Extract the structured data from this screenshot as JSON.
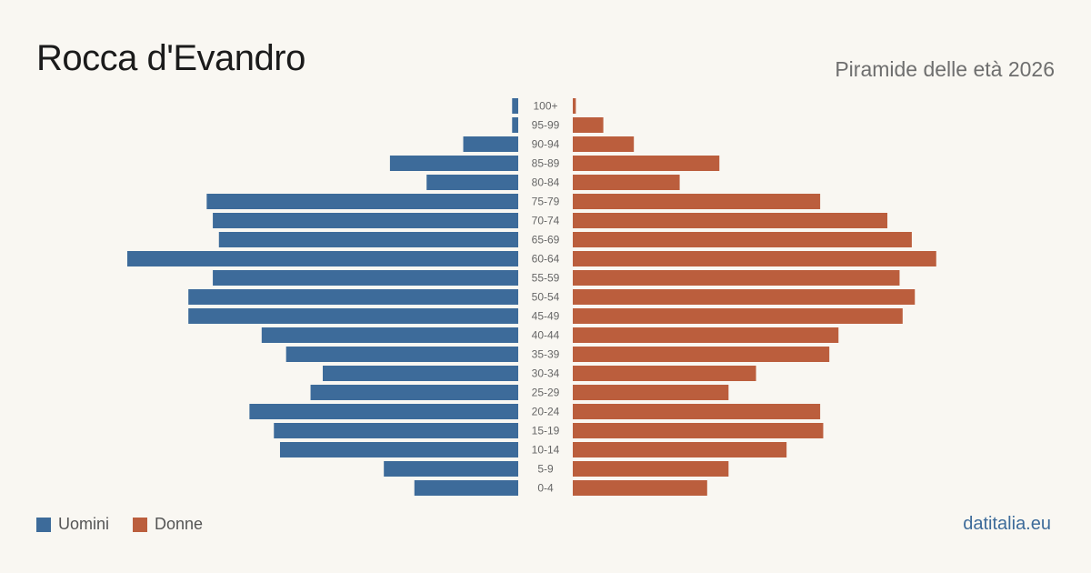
{
  "title": "Rocca d'Evandro",
  "subtitle": "Piramide delle età 2026",
  "brand": "datitalia.eu",
  "legend": {
    "male_label": "Uomini",
    "female_label": "Donne"
  },
  "colors": {
    "male": "#3d6b9a",
    "female": "#bb5e3d",
    "background": "#f9f7f2"
  },
  "chart_data": {
    "type": "bar",
    "orientation": "horizontal-pyramid",
    "categories": [
      "100+",
      "95-99",
      "90-94",
      "85-89",
      "80-84",
      "75-79",
      "70-74",
      "65-69",
      "60-64",
      "55-59",
      "50-54",
      "45-49",
      "40-44",
      "35-39",
      "30-34",
      "25-29",
      "20-24",
      "15-19",
      "10-14",
      "5-9",
      "0-4"
    ],
    "series": [
      {
        "name": "Uomini",
        "side": "left",
        "values": [
          1,
          1,
          9,
          21,
          15,
          51,
          50,
          49,
          64,
          50,
          54,
          54,
          42,
          38,
          32,
          34,
          44,
          40,
          39,
          22,
          17
        ]
      },
      {
        "name": "Donne",
        "side": "right",
        "values": [
          0.5,
          5,
          10,
          24,
          17.5,
          40.5,
          51.5,
          55.5,
          59.5,
          53.5,
          56,
          54,
          43.5,
          42,
          30,
          25.5,
          40.5,
          41,
          35,
          25.5,
          22
        ]
      }
    ],
    "grid": false,
    "legend_position": "bottom-left"
  }
}
